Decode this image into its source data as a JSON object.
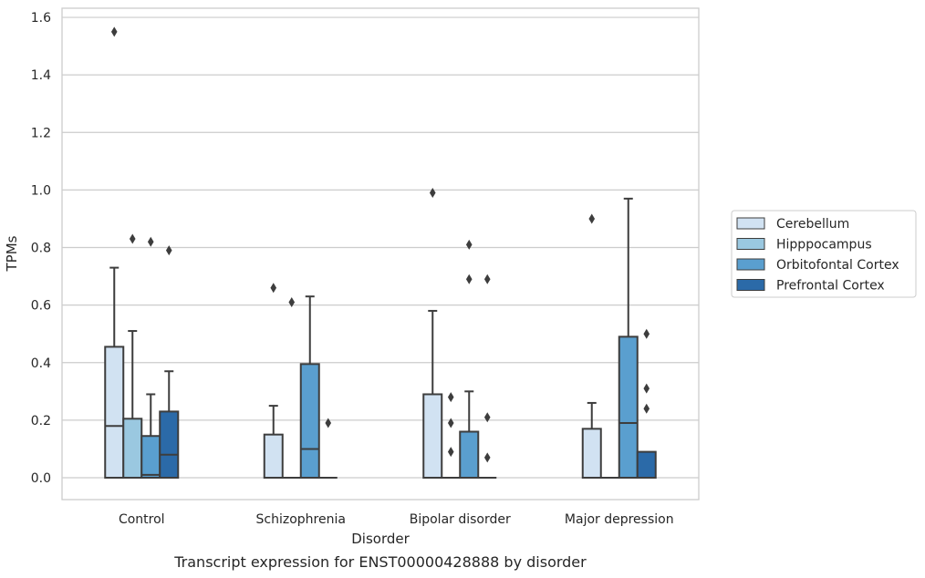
{
  "chart_data": {
    "type": "box",
    "title": "Transcript expression for ENST00000428888 by disorder",
    "xlabel": "Disorder",
    "ylabel": "TPMs",
    "ylim": [
      -0.075,
      1.63
    ],
    "yticks": [
      "0.0",
      "0.2",
      "0.4",
      "0.6",
      "0.8",
      "1.0",
      "1.2",
      "1.4",
      "1.6"
    ],
    "grid": true,
    "legend_position": "center-right-outside",
    "categories": [
      "Control",
      "Schizophrenia",
      "Bipolar disorder",
      "Major depression"
    ],
    "series": [
      {
        "name": "Cerebellum",
        "color": "#d1e2f2",
        "boxes": [
          {
            "q1": 0,
            "median": 0.18,
            "q3": 0.455,
            "whisker_low": 0,
            "whisker_high": 0.73,
            "outliers": [
              1.55
            ]
          },
          {
            "q1": 0,
            "median": 0,
            "q3": 0.15,
            "whisker_low": 0,
            "whisker_high": 0.25,
            "outliers": [
              0.66
            ]
          },
          {
            "q1": 0,
            "median": 0,
            "q3": 0.29,
            "whisker_low": 0,
            "whisker_high": 0.58,
            "outliers": [
              0.99
            ]
          },
          {
            "q1": 0,
            "median": 0,
            "q3": 0.17,
            "whisker_low": 0,
            "whisker_high": 0.26,
            "outliers": [
              0.9
            ]
          }
        ]
      },
      {
        "name": "Hipppocampus",
        "color": "#9ac8e0",
        "boxes": [
          {
            "q1": 0,
            "median": 0,
            "q3": 0.205,
            "whisker_low": 0,
            "whisker_high": 0.51,
            "outliers": [
              0.83
            ]
          },
          {
            "q1": 0,
            "median": 0,
            "q3": 0,
            "whisker_low": 0,
            "whisker_high": 0,
            "outliers": [
              0.61
            ]
          },
          {
            "q1": 0,
            "median": 0,
            "q3": 0,
            "whisker_low": 0,
            "whisker_high": 0,
            "outliers": [
              0.09,
              0.19,
              0.28
            ]
          },
          {
            "q1": 0,
            "median": 0,
            "q3": 0,
            "whisker_low": 0,
            "whisker_high": 0,
            "outliers": []
          }
        ]
      },
      {
        "name": "Orbitofontal Cortex",
        "color": "#5a9fcf",
        "boxes": [
          {
            "q1": 0,
            "median": 0.01,
            "q3": 0.145,
            "whisker_low": 0,
            "whisker_high": 0.29,
            "outliers": [
              0.82
            ]
          },
          {
            "q1": 0,
            "median": 0.1,
            "q3": 0.395,
            "whisker_low": 0,
            "whisker_high": 0.63,
            "outliers": []
          },
          {
            "q1": 0,
            "median": 0,
            "q3": 0.16,
            "whisker_low": 0,
            "whisker_high": 0.3,
            "outliers": [
              0.69,
              0.81
            ]
          },
          {
            "q1": 0,
            "median": 0.19,
            "q3": 0.49,
            "whisker_low": 0,
            "whisker_high": 0.97,
            "outliers": []
          }
        ]
      },
      {
        "name": "Prefrontal Cortex",
        "color": "#2b6aa8",
        "boxes": [
          {
            "q1": 0,
            "median": 0.08,
            "q3": 0.23,
            "whisker_low": 0,
            "whisker_high": 0.37,
            "outliers": [
              0.79
            ]
          },
          {
            "q1": 0,
            "median": 0,
            "q3": 0,
            "whisker_low": 0,
            "whisker_high": 0,
            "outliers": [
              0.19
            ]
          },
          {
            "q1": 0,
            "median": 0,
            "q3": 0,
            "whisker_low": 0,
            "whisker_high": 0,
            "outliers": [
              0.07,
              0.21,
              0.69
            ]
          },
          {
            "q1": 0,
            "median": 0,
            "q3": 0.09,
            "whisker_low": 0,
            "whisker_high": 0.09,
            "outliers": [
              0.24,
              0.31,
              0.5
            ]
          }
        ]
      }
    ]
  }
}
